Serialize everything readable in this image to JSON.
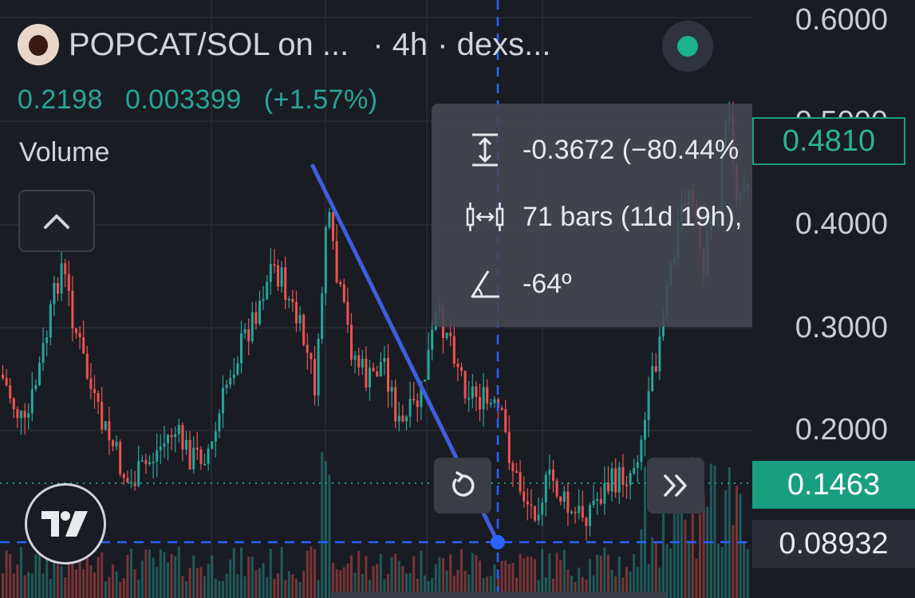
{
  "header": {
    "pair": "POPCAT/SOL on ...",
    "interval": "· 4h",
    "source": "· dexs...",
    "status": "live",
    "status_color": "#1bb38a"
  },
  "quote": {
    "price": "0.2198",
    "change": "0.003399",
    "change_pct": "(+1.57%)",
    "color": "#26a69a"
  },
  "volume": {
    "label": "Volume"
  },
  "measure": {
    "price_change": "-0.3672 (−80.44%",
    "range": "71 bars (11d 19h),",
    "angle": "-64º"
  },
  "y_axis": {
    "labels": [
      "0.6000",
      "0.5000",
      "0.4000",
      "0.3000",
      "0.2000"
    ],
    "current_price": "0.1463",
    "crosshair_price": "0.08932",
    "highlight_price": "0.4810"
  },
  "controls": {
    "collapse_icon": "chevron-up-icon",
    "reset_icon": "reset-icon",
    "scroll_icon": "double-chevron-right-icon"
  },
  "colors": {
    "up": "#26a69a",
    "down": "#ef5350",
    "trendline": "#3d5fe0",
    "crosshair": "#2962ff"
  }
}
